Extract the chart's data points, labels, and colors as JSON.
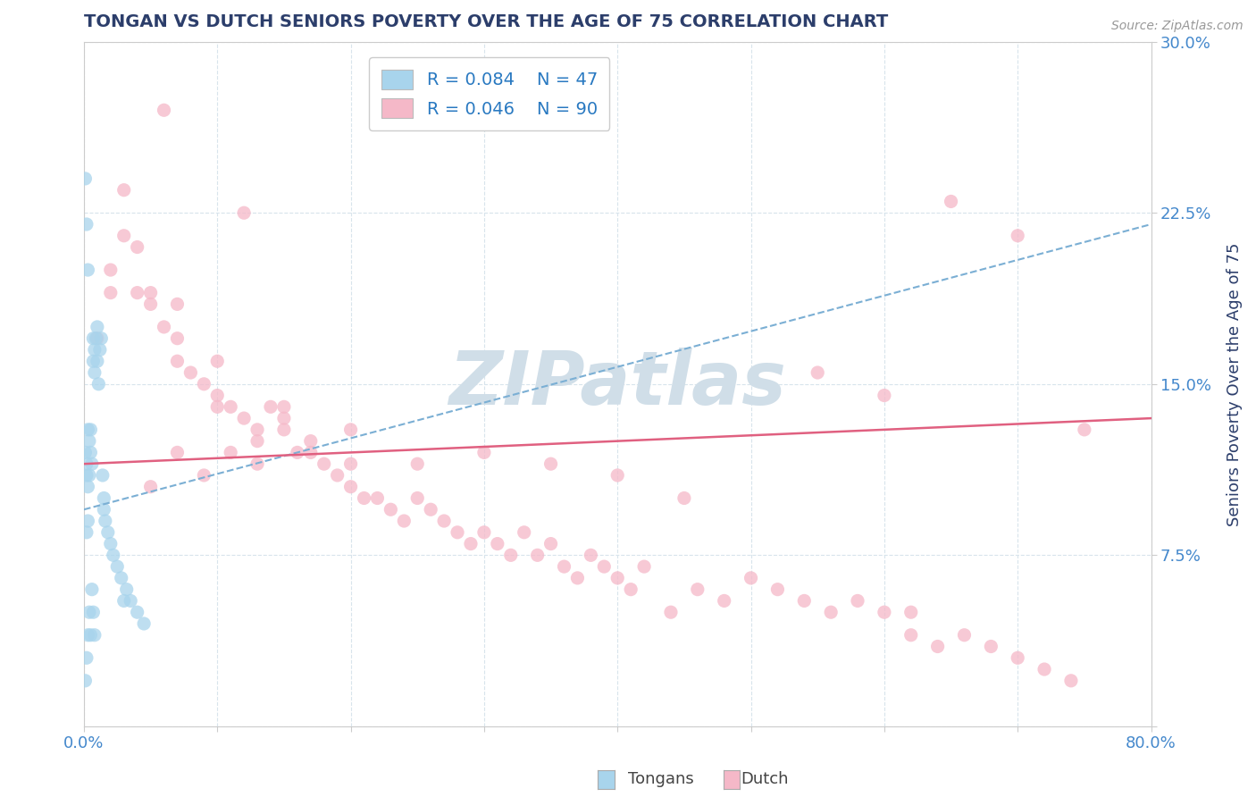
{
  "title": "TONGAN VS DUTCH SENIORS POVERTY OVER THE AGE OF 75 CORRELATION CHART",
  "source_text": "Source: ZipAtlas.com",
  "ylabel": "Seniors Poverty Over the Age of 75",
  "xlim": [
    0.0,
    0.8
  ],
  "ylim": [
    0.0,
    0.3
  ],
  "xticks": [
    0.0,
    0.1,
    0.2,
    0.3,
    0.4,
    0.5,
    0.6,
    0.7,
    0.8
  ],
  "xticklabels": [
    "0.0%",
    "",
    "",
    "",
    "",
    "",
    "",
    "",
    "80.0%"
  ],
  "yticks": [
    0.0,
    0.075,
    0.15,
    0.225,
    0.3
  ],
  "yticklabels": [
    "",
    "7.5%",
    "15.0%",
    "22.5%",
    "30.0%"
  ],
  "tongan_color": "#A8D4EC",
  "dutch_color": "#F5B8C8",
  "tongan_R": 0.084,
  "tongan_N": 47,
  "dutch_R": 0.046,
  "dutch_N": 90,
  "legend_color": "#2979C1",
  "watermark_color": "#D0DEE8",
  "tongan_scatter": [
    [
      0.001,
      0.12
    ],
    [
      0.002,
      0.11
    ],
    [
      0.002,
      0.115
    ],
    [
      0.003,
      0.13
    ],
    [
      0.003,
      0.105
    ],
    [
      0.004,
      0.125
    ],
    [
      0.004,
      0.11
    ],
    [
      0.005,
      0.12
    ],
    [
      0.005,
      0.13
    ],
    [
      0.006,
      0.115
    ],
    [
      0.007,
      0.16
    ],
    [
      0.007,
      0.17
    ],
    [
      0.008,
      0.155
    ],
    [
      0.008,
      0.165
    ],
    [
      0.009,
      0.17
    ],
    [
      0.01,
      0.175
    ],
    [
      0.01,
      0.16
    ],
    [
      0.011,
      0.15
    ],
    [
      0.012,
      0.165
    ],
    [
      0.013,
      0.17
    ],
    [
      0.014,
      0.11
    ],
    [
      0.015,
      0.1
    ],
    [
      0.015,
      0.095
    ],
    [
      0.016,
      0.09
    ],
    [
      0.018,
      0.085
    ],
    [
      0.02,
      0.08
    ],
    [
      0.022,
      0.075
    ],
    [
      0.025,
      0.07
    ],
    [
      0.028,
      0.065
    ],
    [
      0.03,
      0.055
    ],
    [
      0.032,
      0.06
    ],
    [
      0.035,
      0.055
    ],
    [
      0.04,
      0.05
    ],
    [
      0.045,
      0.045
    ],
    [
      0.001,
      0.24
    ],
    [
      0.002,
      0.22
    ],
    [
      0.003,
      0.2
    ],
    [
      0.002,
      0.085
    ],
    [
      0.003,
      0.09
    ],
    [
      0.001,
      0.02
    ],
    [
      0.002,
      0.03
    ],
    [
      0.003,
      0.04
    ],
    [
      0.004,
      0.05
    ],
    [
      0.005,
      0.04
    ],
    [
      0.006,
      0.06
    ],
    [
      0.007,
      0.05
    ],
    [
      0.008,
      0.04
    ]
  ],
  "dutch_scatter": [
    [
      0.01,
      0.17
    ],
    [
      0.02,
      0.2
    ],
    [
      0.02,
      0.19
    ],
    [
      0.03,
      0.235
    ],
    [
      0.03,
      0.215
    ],
    [
      0.04,
      0.21
    ],
    [
      0.04,
      0.19
    ],
    [
      0.05,
      0.19
    ],
    [
      0.05,
      0.185
    ],
    [
      0.06,
      0.175
    ],
    [
      0.07,
      0.17
    ],
    [
      0.07,
      0.16
    ],
    [
      0.08,
      0.155
    ],
    [
      0.09,
      0.15
    ],
    [
      0.1,
      0.145
    ],
    [
      0.1,
      0.14
    ],
    [
      0.11,
      0.14
    ],
    [
      0.12,
      0.135
    ],
    [
      0.13,
      0.13
    ],
    [
      0.13,
      0.125
    ],
    [
      0.14,
      0.14
    ],
    [
      0.15,
      0.135
    ],
    [
      0.15,
      0.13
    ],
    [
      0.16,
      0.12
    ],
    [
      0.17,
      0.125
    ],
    [
      0.17,
      0.12
    ],
    [
      0.18,
      0.115
    ],
    [
      0.19,
      0.11
    ],
    [
      0.2,
      0.115
    ],
    [
      0.2,
      0.105
    ],
    [
      0.21,
      0.1
    ],
    [
      0.22,
      0.1
    ],
    [
      0.23,
      0.095
    ],
    [
      0.24,
      0.09
    ],
    [
      0.25,
      0.1
    ],
    [
      0.26,
      0.095
    ],
    [
      0.27,
      0.09
    ],
    [
      0.28,
      0.085
    ],
    [
      0.29,
      0.08
    ],
    [
      0.3,
      0.085
    ],
    [
      0.31,
      0.08
    ],
    [
      0.32,
      0.075
    ],
    [
      0.33,
      0.085
    ],
    [
      0.34,
      0.075
    ],
    [
      0.35,
      0.08
    ],
    [
      0.36,
      0.07
    ],
    [
      0.37,
      0.065
    ],
    [
      0.38,
      0.075
    ],
    [
      0.39,
      0.07
    ],
    [
      0.4,
      0.065
    ],
    [
      0.41,
      0.06
    ],
    [
      0.42,
      0.07
    ],
    [
      0.44,
      0.05
    ],
    [
      0.46,
      0.06
    ],
    [
      0.48,
      0.055
    ],
    [
      0.5,
      0.065
    ],
    [
      0.52,
      0.06
    ],
    [
      0.54,
      0.055
    ],
    [
      0.56,
      0.05
    ],
    [
      0.58,
      0.055
    ],
    [
      0.6,
      0.05
    ],
    [
      0.62,
      0.04
    ],
    [
      0.64,
      0.035
    ],
    [
      0.66,
      0.04
    ],
    [
      0.68,
      0.035
    ],
    [
      0.7,
      0.03
    ],
    [
      0.72,
      0.025
    ],
    [
      0.74,
      0.02
    ],
    [
      0.05,
      0.105
    ],
    [
      0.07,
      0.12
    ],
    [
      0.09,
      0.11
    ],
    [
      0.11,
      0.12
    ],
    [
      0.13,
      0.115
    ],
    [
      0.06,
      0.27
    ],
    [
      0.12,
      0.225
    ],
    [
      0.65,
      0.23
    ],
    [
      0.7,
      0.215
    ],
    [
      0.75,
      0.13
    ],
    [
      0.55,
      0.155
    ],
    [
      0.6,
      0.145
    ],
    [
      0.62,
      0.05
    ],
    [
      0.4,
      0.11
    ],
    [
      0.45,
      0.1
    ],
    [
      0.35,
      0.115
    ],
    [
      0.3,
      0.12
    ],
    [
      0.25,
      0.115
    ],
    [
      0.2,
      0.13
    ],
    [
      0.15,
      0.14
    ],
    [
      0.1,
      0.16
    ],
    [
      0.07,
      0.185
    ]
  ],
  "tongan_trend_x": [
    0.0,
    0.8
  ],
  "tongan_trend_y": [
    0.095,
    0.22
  ],
  "dutch_trend_x": [
    0.0,
    0.8
  ],
  "dutch_trend_y": [
    0.115,
    0.135
  ],
  "grid_color": "#D8E4EC",
  "bg_color": "#FFFFFF",
  "tick_color": "#4488CC",
  "title_color": "#2C3E6B",
  "ylabel_color": "#2C3E6B"
}
